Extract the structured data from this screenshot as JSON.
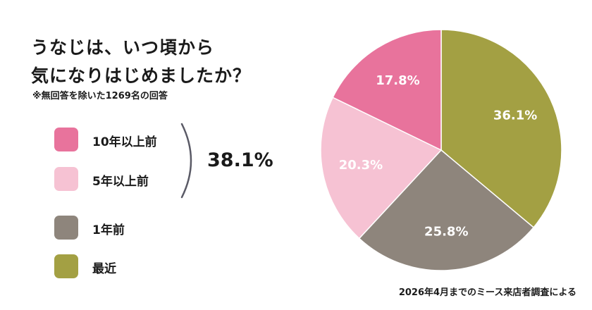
{
  "title": {
    "line1": "うなじは、いつ頃から",
    "line2": "気になりはじめましたか？"
  },
  "note": "※無回答を除いた1269名の回答",
  "legend": [
    {
      "label": "10年以上前",
      "color": "#e8739c"
    },
    {
      "label": "5年以上前",
      "color": "#f6c2d3"
    },
    {
      "label": "1年前",
      "color": "#8e857c"
    },
    {
      "label": "最近",
      "color": "#a3a043"
    }
  ],
  "bracket_total": "38.1%",
  "footnote": "2026年4月までのミース来店者調査による",
  "chart_data": {
    "type": "pie",
    "start": "12 o'clock",
    "direction": "clockwise",
    "slices": [
      {
        "name": "最近",
        "value": 36.1,
        "label": "36.1%",
        "color": "#a3a043"
      },
      {
        "name": "1年前",
        "value": 25.8,
        "label": "25.8%",
        "color": "#8e857c"
      },
      {
        "name": "5年以上前",
        "value": 20.3,
        "label": "20.3%",
        "color": "#f6c2d3"
      },
      {
        "name": "10年以上前",
        "value": 17.8,
        "label": "17.8%",
        "color": "#e8739c"
      }
    ]
  }
}
